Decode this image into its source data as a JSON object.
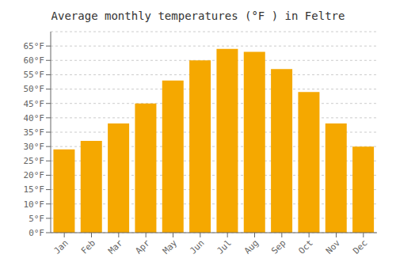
{
  "chart_data": {
    "type": "bar",
    "title": "Average monthly temperatures (°F ) in Feltre",
    "categories": [
      "Jan",
      "Feb",
      "Mar",
      "Apr",
      "May",
      "Jun",
      "Jul",
      "Aug",
      "Sep",
      "Oct",
      "Nov",
      "Dec"
    ],
    "values": [
      29,
      32,
      38,
      45,
      53,
      60,
      64,
      63,
      57,
      49,
      38,
      30
    ],
    "color": "#F5A800",
    "ylim": [
      0,
      70
    ],
    "yticks": [
      {
        "value": 0,
        "label": "0°F"
      },
      {
        "value": 5,
        "label": "5°F"
      },
      {
        "value": 10,
        "label": "10°F"
      },
      {
        "value": 15,
        "label": "15°F"
      },
      {
        "value": 20,
        "label": "20°F"
      },
      {
        "value": 25,
        "label": "25°F"
      },
      {
        "value": 30,
        "label": "30°F"
      },
      {
        "value": 35,
        "label": "35°F"
      },
      {
        "value": 40,
        "label": "40°F"
      },
      {
        "value": 45,
        "label": "45°F"
      },
      {
        "value": 50,
        "label": "50°F"
      },
      {
        "value": 55,
        "label": "55°F"
      },
      {
        "value": 60,
        "label": "60°F"
      },
      {
        "value": 65,
        "label": "65°F"
      }
    ],
    "grid": true
  }
}
